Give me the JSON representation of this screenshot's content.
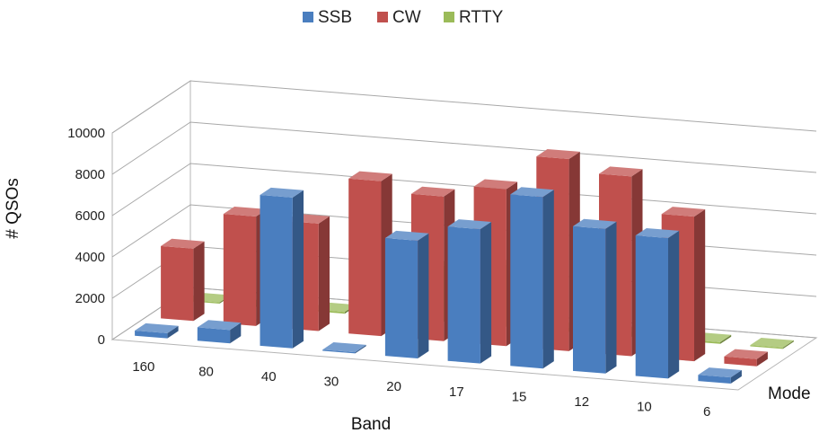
{
  "chart_data": {
    "type": "bar",
    "categories": [
      "160",
      "80",
      "40",
      "30",
      "20",
      "17",
      "15",
      "12",
      "10",
      "6"
    ],
    "series": [
      {
        "name": "SSB",
        "values": [
          250,
          650,
          7300,
          0,
          5700,
          6500,
          8300,
          7000,
          6800,
          300
        ],
        "color": "#4a7ebf"
      },
      {
        "name": "CW",
        "values": [
          3500,
          5300,
          5200,
          7500,
          7000,
          7600,
          9300,
          8700,
          7000,
          350
        ],
        "color": "#c0504d"
      },
      {
        "name": "RTTY",
        "values": [
          60,
          80,
          80,
          0,
          2700,
          3000,
          200,
          250,
          80,
          60
        ],
        "color": "#9bbb59"
      }
    ],
    "xlabel": "Band",
    "ylabel": "# QSOs",
    "zlabel": "Mode",
    "ylim": [
      0,
      10000
    ],
    "yticks": [
      0,
      2000,
      4000,
      6000,
      8000,
      10000
    ],
    "legend": "top-center",
    "grid": true
  }
}
